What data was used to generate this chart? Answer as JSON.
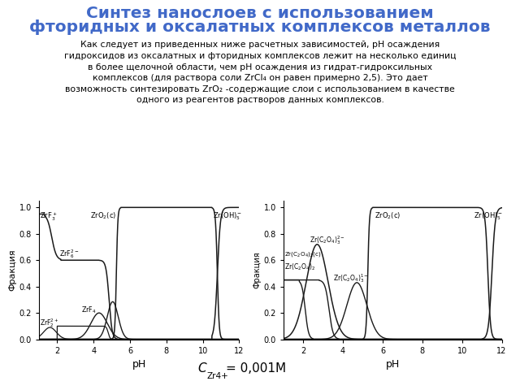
{
  "title_line1": "Синтез нанослоев с использованием",
  "title_line2": "фторидных и оксалатных комплексов металлов",
  "title_color": "#4169C8",
  "body_lines": [
    "Как следует из приведенных ниже расчетных зависимостей, pH осаждения",
    "гидроксидов из оксалатных и фторидных комплексов лежит на несколько единиц",
    "в более щелочной области, чем pH осаждения из гидрат-гидроксильных",
    "комплексов (для раствора соли ZrCl₄ он равен примерно 2,5). Это дает",
    "возможность синтезировать ZrO₂ -содержащие слои с использованием в качестве",
    "одного из реагентов растворов данных комплексов."
  ],
  "xlabel": "pH",
  "ylabel_left": "Фракция",
  "ylabel_right": "Фракция",
  "line_color": "#1a1a1a",
  "xlim": [
    1,
    12
  ],
  "ylim": [
    0.0,
    1.05
  ]
}
